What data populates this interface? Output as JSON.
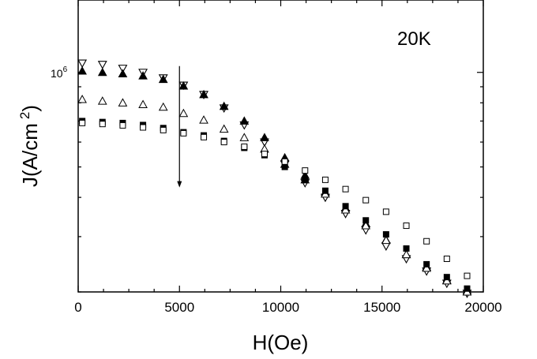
{
  "chart_data": {
    "type": "scatter",
    "annotation": "20K",
    "xlabel": "H(Oe)",
    "ylabel_main": "J(A/cm",
    "ylabel_sup": "2",
    "ylabel_close": ")",
    "ylabel_scale": "log",
    "xlim": [
      0,
      20000
    ],
    "ylim": [
      200000,
      1700000
    ],
    "x_ticks": [
      {
        "value": 0,
        "label": "0"
      },
      {
        "value": 5000,
        "label": "5000"
      },
      {
        "value": 10000,
        "label": "10000"
      },
      {
        "value": 15000,
        "label": "15000"
      },
      {
        "value": 20000,
        "label": "20000"
      }
    ],
    "y_tick_label": {
      "base": "10",
      "exp": "6",
      "value": 1000000
    },
    "arrow": {
      "x": 5000,
      "y_from": 1000000,
      "y_to": 430000
    },
    "series": [
      {
        "marker": "triangle-down-open",
        "points": [
          [
            200,
            1070000
          ],
          [
            1200,
            1060000
          ],
          [
            2200,
            1030000
          ],
          [
            3200,
            1000000
          ],
          [
            4200,
            960000
          ],
          [
            5200,
            910000
          ],
          [
            6200,
            850000
          ],
          [
            7200,
            770000
          ],
          [
            8200,
            680000
          ],
          [
            9200,
            600000
          ],
          [
            10200,
            510000
          ],
          [
            11200,
            445000
          ],
          [
            12200,
            400000
          ],
          [
            13200,
            355000
          ],
          [
            14200,
            315000
          ],
          [
            15200,
            280000
          ],
          [
            16200,
            255000
          ],
          [
            17200,
            233000
          ],
          [
            18200,
            213000
          ],
          [
            19200,
            198000
          ]
        ]
      },
      {
        "marker": "triangle-up-filled",
        "points": [
          [
            200,
            1010000
          ],
          [
            1200,
            1000000
          ],
          [
            2200,
            990000
          ],
          [
            3200,
            975000
          ],
          [
            4200,
            950000
          ],
          [
            5200,
            905000
          ],
          [
            6200,
            850000
          ],
          [
            7200,
            780000
          ],
          [
            8200,
            700000
          ],
          [
            9200,
            620000
          ],
          [
            10200,
            535000
          ],
          [
            11200,
            470000
          ],
          [
            12200,
            415000
          ],
          [
            13200,
            370000
          ],
          [
            14200,
            330000
          ],
          [
            15200,
            293000
          ],
          [
            16200,
            263000
          ],
          [
            17200,
            240000
          ],
          [
            18200,
            218000
          ],
          [
            19200,
            202000
          ]
        ]
      },
      {
        "marker": "triangle-up-open",
        "points": [
          [
            200,
            820000
          ],
          [
            1200,
            810000
          ],
          [
            2200,
            800000
          ],
          [
            3200,
            790000
          ],
          [
            4200,
            775000
          ],
          [
            5200,
            740000
          ],
          [
            6200,
            705000
          ],
          [
            7200,
            660000
          ],
          [
            8200,
            620000
          ],
          [
            9200,
            570000
          ],
          [
            10200,
            510000
          ],
          [
            11200,
            455000
          ],
          [
            12200,
            410000
          ],
          [
            13200,
            365000
          ],
          [
            14200,
            325000
          ],
          [
            15200,
            292000
          ],
          [
            16200,
            263000
          ],
          [
            17200,
            238000
          ],
          [
            18200,
            217000
          ],
          [
            19200,
            200000
          ]
        ]
      },
      {
        "marker": "square-filled",
        "points": [
          [
            200,
            700000
          ],
          [
            1200,
            695000
          ],
          [
            2200,
            690000
          ],
          [
            3200,
            680000
          ],
          [
            4200,
            665000
          ],
          [
            5200,
            645000
          ],
          [
            6200,
            630000
          ],
          [
            7200,
            605000
          ],
          [
            8200,
            575000
          ],
          [
            9200,
            545000
          ],
          [
            10200,
            500000
          ],
          [
            11200,
            455000
          ],
          [
            12200,
            420000
          ],
          [
            13200,
            375000
          ],
          [
            14200,
            338000
          ],
          [
            15200,
            305000
          ],
          [
            16200,
            275000
          ],
          [
            17200,
            245000
          ],
          [
            18200,
            223000
          ],
          [
            19200,
            205000
          ]
        ]
      },
      {
        "marker": "square-open",
        "points": [
          [
            200,
            690000
          ],
          [
            1200,
            685000
          ],
          [
            2200,
            678000
          ],
          [
            3200,
            668000
          ],
          [
            4200,
            655000
          ],
          [
            5200,
            640000
          ],
          [
            6200,
            622000
          ],
          [
            7200,
            600000
          ],
          [
            8200,
            580000
          ],
          [
            9200,
            550000
          ],
          [
            10200,
            520000
          ],
          [
            11200,
            487000
          ],
          [
            12200,
            455000
          ],
          [
            13200,
            425000
          ],
          [
            14200,
            392000
          ],
          [
            15200,
            360000
          ],
          [
            16200,
            325000
          ],
          [
            17200,
            290000
          ],
          [
            18200,
            255000
          ],
          [
            19200,
            225000
          ]
        ]
      }
    ]
  }
}
